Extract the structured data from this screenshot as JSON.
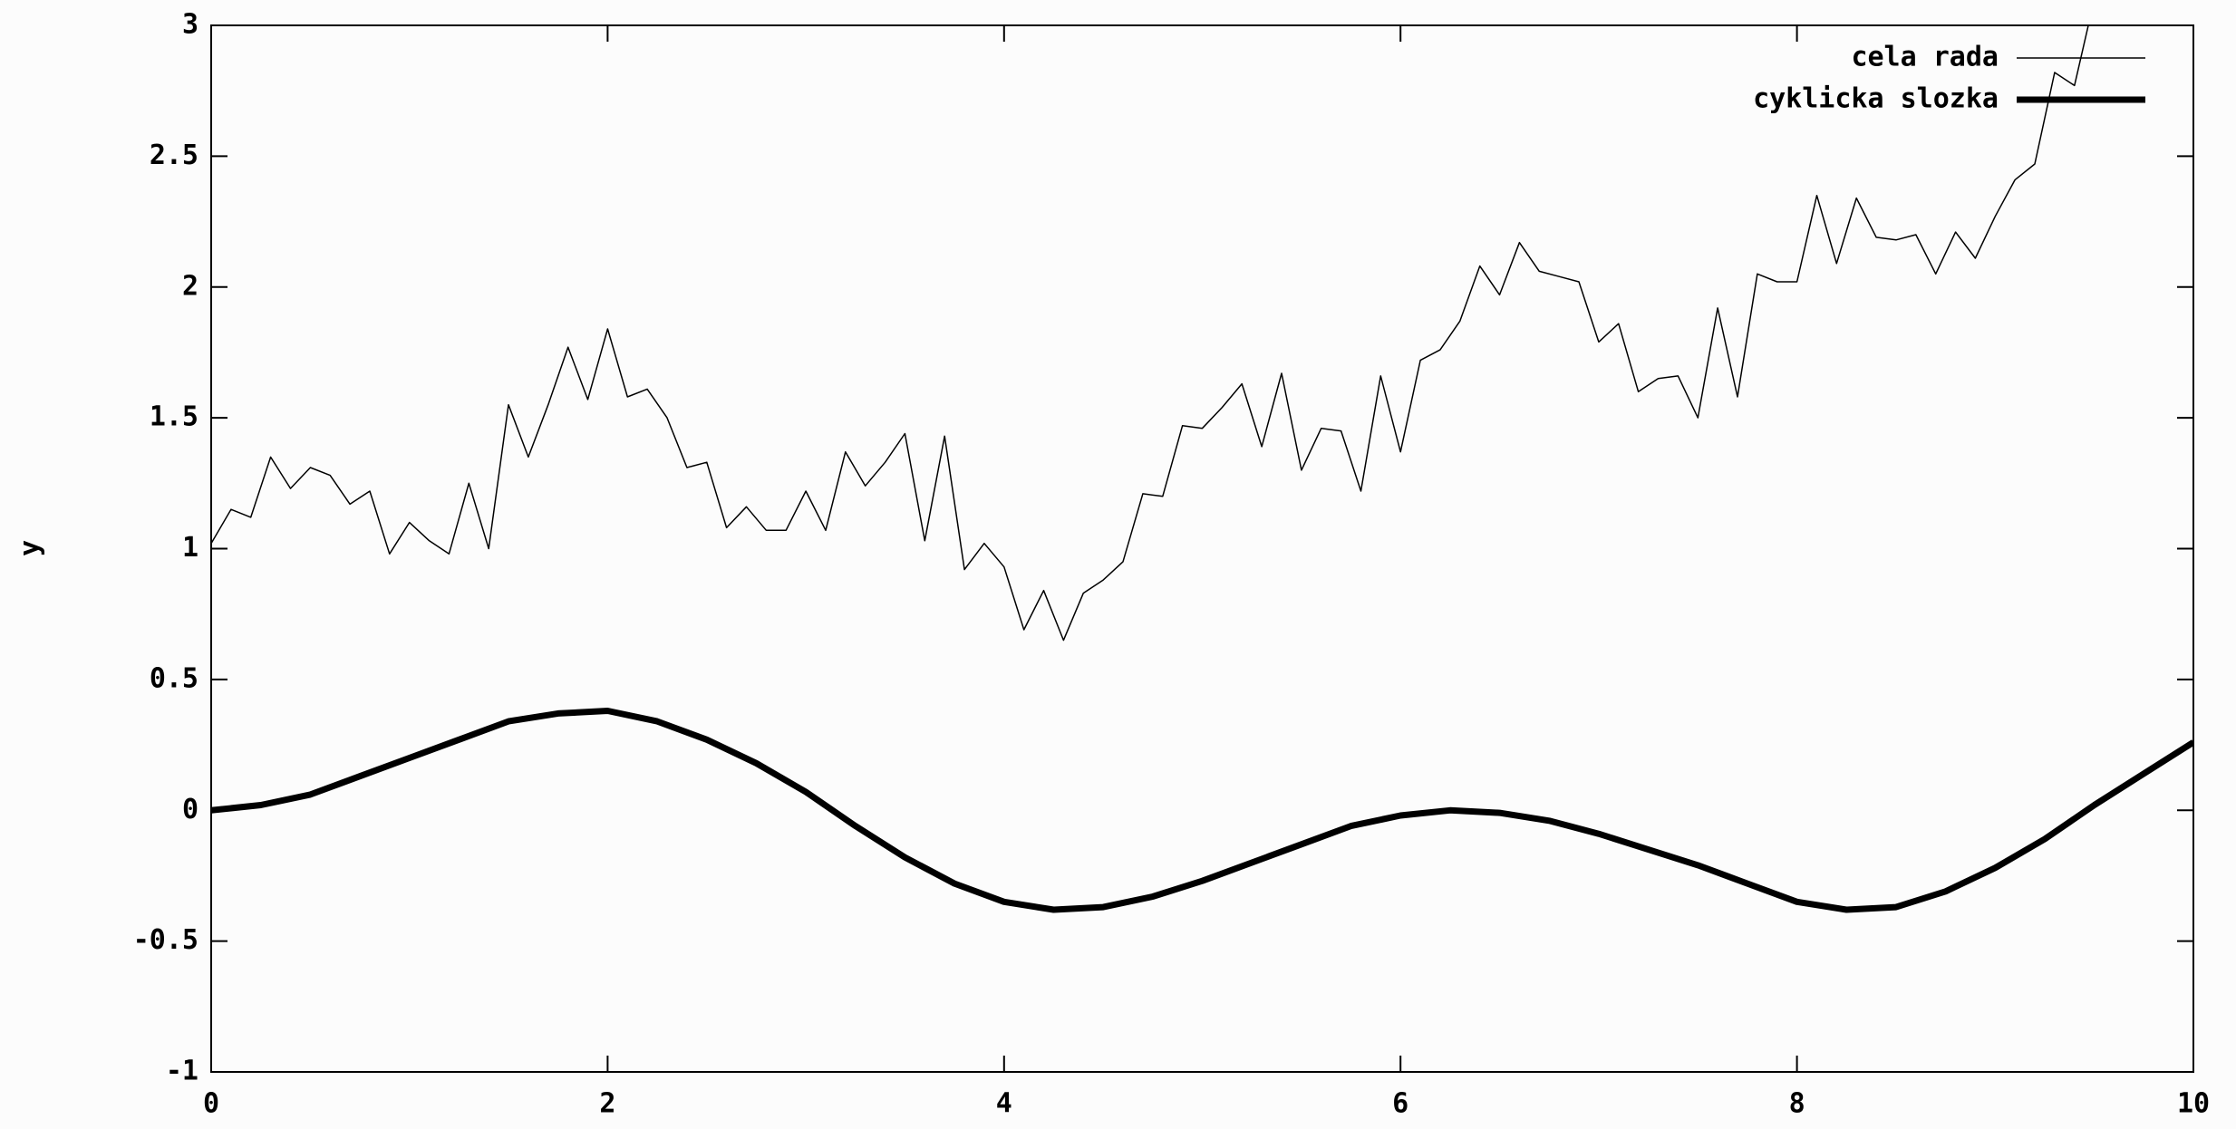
{
  "chart_data": {
    "type": "line",
    "ylabel": "y",
    "xlim": [
      0,
      10
    ],
    "xticks": [
      0,
      2,
      4,
      6,
      8,
      10
    ],
    "ylim": [
      -1,
      3
    ],
    "yticks": [
      -1,
      -0.5,
      0,
      0.5,
      1,
      1.5,
      2,
      2.5,
      3
    ],
    "legend": "top-right",
    "grid": false,
    "series": [
      {
        "name": "cela rada",
        "color": "#000000",
        "width": 1.5,
        "x": [
          0,
          0.1,
          0.2,
          0.3,
          0.4,
          0.5,
          0.6,
          0.7,
          0.8,
          0.9,
          1,
          1.1,
          1.2,
          1.3,
          1.4,
          1.5,
          1.6,
          1.7,
          1.8,
          1.9,
          2,
          2.1,
          2.2,
          2.3,
          2.4,
          2.5,
          2.6,
          2.7,
          2.8,
          2.9,
          3,
          3.1,
          3.2,
          3.3,
          3.4,
          3.5,
          3.6,
          3.7,
          3.8,
          3.9,
          4,
          4.1,
          4.2,
          4.3,
          4.4,
          4.5,
          4.6,
          4.7,
          4.8,
          4.9,
          5,
          5.1,
          5.2,
          5.3,
          5.4,
          5.5,
          5.6,
          5.7,
          5.8,
          5.9,
          6,
          6.1,
          6.2,
          6.3,
          6.4,
          6.5,
          6.6,
          6.7,
          6.8,
          6.9,
          7,
          7.1,
          7.2,
          7.3,
          7.4,
          7.5,
          7.6,
          7.7,
          7.8,
          7.9,
          8,
          8.1,
          8.2,
          8.3,
          8.4,
          8.5,
          8.6,
          8.7,
          8.8,
          8.9,
          9,
          9.1,
          9.2,
          9.3,
          9.4,
          9.5
        ],
        "values": [
          1.02,
          1.15,
          1.12,
          1.35,
          1.23,
          1.31,
          1.28,
          1.17,
          1.22,
          0.98,
          1.1,
          1.03,
          0.98,
          1.25,
          1.0,
          1.55,
          1.35,
          1.55,
          1.77,
          1.57,
          1.84,
          1.58,
          1.61,
          1.5,
          1.31,
          1.33,
          1.08,
          1.16,
          1.07,
          1.07,
          1.22,
          1.07,
          1.37,
          1.24,
          1.33,
          1.44,
          1.03,
          1.43,
          0.92,
          1.02,
          0.93,
          0.69,
          0.84,
          0.65,
          0.83,
          0.88,
          0.95,
          1.21,
          1.2,
          1.47,
          1.46,
          1.54,
          1.63,
          1.39,
          1.67,
          1.3,
          1.46,
          1.45,
          1.22,
          1.66,
          1.37,
          1.72,
          1.76,
          1.87,
          2.08,
          1.97,
          2.17,
          2.06,
          2.04,
          2.02,
          1.79,
          1.86,
          1.6,
          1.65,
          1.66,
          1.5,
          1.92,
          1.58,
          2.05,
          2.02,
          2.02,
          2.35,
          2.09,
          2.34,
          2.19,
          2.18,
          2.2,
          2.05,
          2.21,
          2.11,
          2.27,
          2.41,
          2.47,
          2.82,
          2.77,
          3.1
        ]
      },
      {
        "name": "cyklicka slozka",
        "color": "#000000",
        "width": 7,
        "x": [
          0,
          0.25,
          0.5,
          0.75,
          1,
          1.25,
          1.5,
          1.75,
          2,
          2.25,
          2.5,
          2.75,
          3,
          3.25,
          3.5,
          3.75,
          4,
          4.25,
          4.5,
          4.75,
          5,
          5.25,
          5.5,
          5.75,
          6,
          6.25,
          6.5,
          6.75,
          7,
          7.25,
          7.5,
          7.75,
          8,
          8.25,
          8.5,
          8.75,
          9,
          9.25,
          9.5,
          9.75,
          10
        ],
        "values": [
          0,
          0.02,
          0.06,
          0.13,
          0.2,
          0.27,
          0.34,
          0.37,
          0.38,
          0.34,
          0.27,
          0.18,
          0.07,
          -0.06,
          -0.18,
          -0.28,
          -0.35,
          -0.38,
          -0.37,
          -0.33,
          -0.27,
          -0.2,
          -0.13,
          -0.06,
          -0.02,
          0,
          -0.01,
          -0.04,
          -0.09,
          -0.15,
          -0.21,
          -0.28,
          -0.35,
          -0.38,
          -0.37,
          -0.31,
          -0.22,
          -0.11,
          0.02,
          0.14,
          0.26
        ]
      }
    ]
  }
}
